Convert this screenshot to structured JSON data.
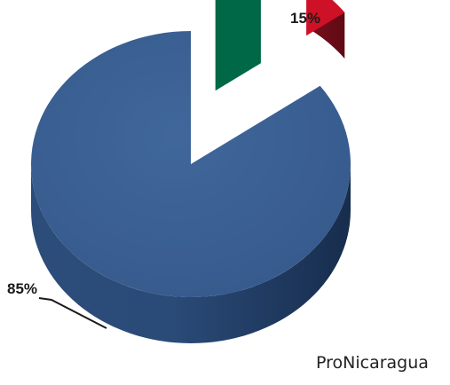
{
  "chart_data": {
    "type": "pie",
    "title": "",
    "categories": [
      "",
      "México"
    ],
    "values": [
      85,
      15
    ],
    "labels": [
      "85%",
      "15%"
    ],
    "colors": [
      "#3b5f92",
      "#c8102e"
    ],
    "exploded_slice": "México",
    "slice_fill_icon": "mexico-flag-icon",
    "legend": "none"
  },
  "source": "ProNicaragua"
}
